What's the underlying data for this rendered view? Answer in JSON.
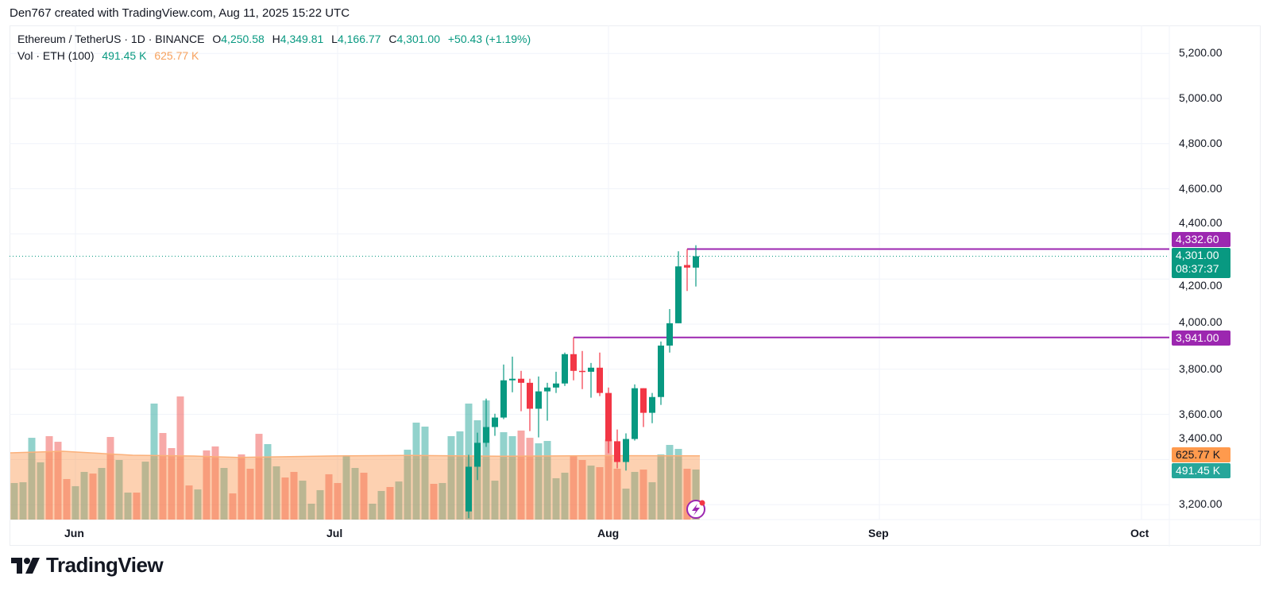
{
  "attribution": "Den767 created with TradingView.com, Aug 11, 2025 15:22 UTC",
  "legend": {
    "symbol": "Ethereum / TetherUS · 1D · BINANCE",
    "o_label": "O",
    "open": "4,250.58",
    "h_label": "H",
    "high": "4,349.81",
    "l_label": "L",
    "low": "4,166.77",
    "c_label": "C",
    "close": "4,301.00",
    "change": "+50.43 (+1.19%)",
    "vol_label": "Vol · ETH (100)",
    "vol_value": "491.45 K",
    "vol_ma_value": "625.77 K"
  },
  "price_labels": {
    "upper_level": "4,332.60",
    "last_price": "4,301.00",
    "countdown": "08:37:37",
    "lower_level": "3,941.00",
    "vol_ma": "625.77 K",
    "vol": "491.45 K"
  },
  "logo_text": "TradingView",
  "colors": {
    "up": "#089981",
    "down": "#f23645",
    "level": "#9c27b0",
    "vol_ma": "#ff9a4d",
    "vol_up": "#26a69a",
    "vol_down": "#ef5350"
  },
  "chart_data": {
    "type": "candlestick",
    "title": "Ethereum / TetherUS · 1D · BINANCE",
    "x_ticks": [
      {
        "label": "Jun",
        "date": "2025-06-01"
      },
      {
        "label": "Jul",
        "date": "2025-07-01"
      },
      {
        "label": "Aug",
        "date": "2025-08-01"
      },
      {
        "label": "Sep",
        "date": "2025-09-01"
      },
      {
        "label": "Oct",
        "date": "2025-10-01"
      }
    ],
    "y_ticks": [
      {
        "label": "5,200.00",
        "value": 5200
      },
      {
        "label": "5,000.00",
        "value": 5000
      },
      {
        "label": "4,800.00",
        "value": 4800
      },
      {
        "label": "4,600.00",
        "value": 4600
      },
      {
        "label": "4,400.00",
        "value": 4400
      },
      {
        "label": "4,200.00",
        "value": 4200
      },
      {
        "label": "4,000.00",
        "value": 4000
      },
      {
        "label": "3,800.00",
        "value": 3800
      },
      {
        "label": "3,600.00",
        "value": 3600
      },
      {
        "label": "3,400.00",
        "value": 3400
      },
      {
        "label": "3,200.00",
        "value": 3200
      }
    ],
    "grid": true,
    "horizontal_levels": [
      {
        "value": 4332.6,
        "from": "2025-08-10"
      },
      {
        "value": 3941.0,
        "from": "2025-07-28"
      }
    ],
    "last_price": 4301.0,
    "candles": [
      {
        "date": "2025-07-16",
        "o": 3170,
        "h": 3421,
        "l": 3140,
        "c": 3368
      },
      {
        "date": "2025-07-17",
        "o": 3368,
        "h": 3519,
        "l": 3309,
        "c": 3474
      },
      {
        "date": "2025-07-18",
        "o": 3474,
        "h": 3670,
        "l": 3456,
        "c": 3544
      },
      {
        "date": "2025-07-19",
        "o": 3544,
        "h": 3603,
        "l": 3505,
        "c": 3586
      },
      {
        "date": "2025-07-20",
        "o": 3586,
        "h": 3821,
        "l": 3579,
        "c": 3751
      },
      {
        "date": "2025-07-21",
        "o": 3751,
        "h": 3856,
        "l": 3698,
        "c": 3758
      },
      {
        "date": "2025-07-22",
        "o": 3758,
        "h": 3793,
        "l": 3614,
        "c": 3740
      },
      {
        "date": "2025-07-23",
        "o": 3740,
        "h": 3758,
        "l": 3526,
        "c": 3625
      },
      {
        "date": "2025-07-24",
        "o": 3625,
        "h": 3768,
        "l": 3498,
        "c": 3702
      },
      {
        "date": "2025-07-25",
        "o": 3702,
        "h": 3740,
        "l": 3572,
        "c": 3719
      },
      {
        "date": "2025-07-26",
        "o": 3719,
        "h": 3789,
        "l": 3695,
        "c": 3737
      },
      {
        "date": "2025-07-27",
        "o": 3737,
        "h": 3874,
        "l": 3726,
        "c": 3867
      },
      {
        "date": "2025-07-28",
        "o": 3867,
        "h": 3941,
        "l": 3751,
        "c": 3793
      },
      {
        "date": "2025-07-29",
        "o": 3793,
        "h": 3881,
        "l": 3712,
        "c": 3789
      },
      {
        "date": "2025-07-30",
        "o": 3789,
        "h": 3828,
        "l": 3674,
        "c": 3807
      },
      {
        "date": "2025-07-31",
        "o": 3807,
        "h": 3874,
        "l": 3681,
        "c": 3695
      },
      {
        "date": "2025-08-01",
        "o": 3695,
        "h": 3719,
        "l": 3428,
        "c": 3481
      },
      {
        "date": "2025-08-02",
        "o": 3481,
        "h": 3533,
        "l": 3361,
        "c": 3389
      },
      {
        "date": "2025-08-03",
        "o": 3389,
        "h": 3516,
        "l": 3351,
        "c": 3491
      },
      {
        "date": "2025-08-04",
        "o": 3491,
        "h": 3733,
        "l": 3484,
        "c": 3716
      },
      {
        "date": "2025-08-05",
        "o": 3716,
        "h": 3716,
        "l": 3544,
        "c": 3607
      },
      {
        "date": "2025-08-06",
        "o": 3607,
        "h": 3695,
        "l": 3561,
        "c": 3677
      },
      {
        "date": "2025-08-07",
        "o": 3677,
        "h": 3923,
        "l": 3642,
        "c": 3905
      },
      {
        "date": "2025-08-08",
        "o": 3905,
        "h": 4067,
        "l": 3874,
        "c": 4004
      },
      {
        "date": "2025-08-09",
        "o": 4004,
        "h": 4323,
        "l": 4004,
        "c": 4256
      },
      {
        "date": "2025-08-10",
        "o": 4262,
        "h": 4332.6,
        "l": 4147,
        "c": 4250.58
      },
      {
        "date": "2025-08-11",
        "o": 4250.58,
        "h": 4349.81,
        "l": 4166.77,
        "c": 4301.0
      }
    ],
    "volume_unit": "K",
    "volume": [
      {
        "date": "2025-05-25",
        "v": 359,
        "up": true
      },
      {
        "date": "2025-05-26",
        "v": 367,
        "up": true
      },
      {
        "date": "2025-05-27",
        "v": 803,
        "up": true
      },
      {
        "date": "2025-05-28",
        "v": 562,
        "up": true
      },
      {
        "date": "2025-05-29",
        "v": 819,
        "up": false
      },
      {
        "date": "2025-05-30",
        "v": 764,
        "up": false
      },
      {
        "date": "2025-05-31",
        "v": 398,
        "up": false
      },
      {
        "date": "2025-06-01",
        "v": 328,
        "up": true
      },
      {
        "date": "2025-06-02",
        "v": 468,
        "up": true
      },
      {
        "date": "2025-06-03",
        "v": 452,
        "up": false
      },
      {
        "date": "2025-06-04",
        "v": 507,
        "up": true
      },
      {
        "date": "2025-06-05",
        "v": 811,
        "up": false
      },
      {
        "date": "2025-06-06",
        "v": 585,
        "up": true
      },
      {
        "date": "2025-06-07",
        "v": 265,
        "up": true
      },
      {
        "date": "2025-06-08",
        "v": 265,
        "up": false
      },
      {
        "date": "2025-06-09",
        "v": 569,
        "up": true
      },
      {
        "date": "2025-06-10",
        "v": 1139,
        "up": true
      },
      {
        "date": "2025-06-11",
        "v": 850,
        "up": false
      },
      {
        "date": "2025-06-12",
        "v": 702,
        "up": false
      },
      {
        "date": "2025-06-13",
        "v": 1209,
        "up": false
      },
      {
        "date": "2025-06-14",
        "v": 335,
        "up": false
      },
      {
        "date": "2025-06-15",
        "v": 296,
        "up": true
      },
      {
        "date": "2025-06-16",
        "v": 679,
        "up": false
      },
      {
        "date": "2025-06-17",
        "v": 718,
        "up": false
      },
      {
        "date": "2025-06-18",
        "v": 507,
        "up": true
      },
      {
        "date": "2025-06-19",
        "v": 257,
        "up": false
      },
      {
        "date": "2025-06-20",
        "v": 640,
        "up": false
      },
      {
        "date": "2025-06-21",
        "v": 499,
        "up": false
      },
      {
        "date": "2025-06-22",
        "v": 842,
        "up": false
      },
      {
        "date": "2025-06-23",
        "v": 741,
        "up": true
      },
      {
        "date": "2025-06-24",
        "v": 523,
        "up": true
      },
      {
        "date": "2025-06-25",
        "v": 413,
        "up": false
      },
      {
        "date": "2025-06-26",
        "v": 468,
        "up": false
      },
      {
        "date": "2025-06-27",
        "v": 382,
        "up": true
      },
      {
        "date": "2025-06-28",
        "v": 156,
        "up": true
      },
      {
        "date": "2025-06-29",
        "v": 289,
        "up": true
      },
      {
        "date": "2025-06-30",
        "v": 445,
        "up": false
      },
      {
        "date": "2025-07-01",
        "v": 359,
        "up": false
      },
      {
        "date": "2025-07-02",
        "v": 632,
        "up": true
      },
      {
        "date": "2025-07-03",
        "v": 507,
        "up": true
      },
      {
        "date": "2025-07-04",
        "v": 460,
        "up": false
      },
      {
        "date": "2025-07-05",
        "v": 156,
        "up": true
      },
      {
        "date": "2025-07-06",
        "v": 281,
        "up": true
      },
      {
        "date": "2025-07-07",
        "v": 320,
        "up": false
      },
      {
        "date": "2025-07-08",
        "v": 374,
        "up": true
      },
      {
        "date": "2025-07-09",
        "v": 686,
        "up": true
      },
      {
        "date": "2025-07-10",
        "v": 952,
        "up": true
      },
      {
        "date": "2025-07-11",
        "v": 913,
        "up": true
      },
      {
        "date": "2025-07-12",
        "v": 351,
        "up": false
      },
      {
        "date": "2025-07-13",
        "v": 359,
        "up": true
      },
      {
        "date": "2025-07-14",
        "v": 819,
        "up": true
      },
      {
        "date": "2025-07-15",
        "v": 866,
        "up": true
      },
      {
        "date": "2025-07-16",
        "v": 1139,
        "up": true
      },
      {
        "date": "2025-07-17",
        "v": 975,
        "up": true
      },
      {
        "date": "2025-07-18",
        "v": 1170,
        "up": true
      },
      {
        "date": "2025-07-19",
        "v": 382,
        "up": true
      },
      {
        "date": "2025-07-20",
        "v": 858,
        "up": true
      },
      {
        "date": "2025-07-21",
        "v": 819,
        "up": true
      },
      {
        "date": "2025-07-22",
        "v": 874,
        "up": false
      },
      {
        "date": "2025-07-23",
        "v": 803,
        "up": false
      },
      {
        "date": "2025-07-24",
        "v": 749,
        "up": true
      },
      {
        "date": "2025-07-25",
        "v": 772,
        "up": true
      },
      {
        "date": "2025-07-26",
        "v": 406,
        "up": true
      },
      {
        "date": "2025-07-27",
        "v": 460,
        "up": true
      },
      {
        "date": "2025-07-28",
        "v": 624,
        "up": false
      },
      {
        "date": "2025-07-29",
        "v": 585,
        "up": false
      },
      {
        "date": "2025-07-30",
        "v": 530,
        "up": true
      },
      {
        "date": "2025-07-31",
        "v": 515,
        "up": false
      },
      {
        "date": "2025-08-01",
        "v": 788,
        "up": false
      },
      {
        "date": "2025-08-02",
        "v": 499,
        "up": false
      },
      {
        "date": "2025-08-03",
        "v": 304,
        "up": true
      },
      {
        "date": "2025-08-04",
        "v": 468,
        "up": true
      },
      {
        "date": "2025-08-05",
        "v": 491,
        "up": false
      },
      {
        "date": "2025-08-06",
        "v": 367,
        "up": true
      },
      {
        "date": "2025-08-07",
        "v": 640,
        "up": true
      },
      {
        "date": "2025-08-08",
        "v": 733,
        "up": true
      },
      {
        "date": "2025-08-09",
        "v": 694,
        "up": true
      },
      {
        "date": "2025-08-10",
        "v": 499,
        "up": false
      },
      {
        "date": "2025-08-11",
        "v": 491.45,
        "up": true
      }
    ],
    "volume_ma": [
      {
        "date": "2025-05-25",
        "v": 655
      },
      {
        "date": "2025-05-31",
        "v": 671
      },
      {
        "date": "2025-06-08",
        "v": 632
      },
      {
        "date": "2025-06-15",
        "v": 624
      },
      {
        "date": "2025-06-20",
        "v": 610
      },
      {
        "date": "2025-07-01",
        "v": 625
      },
      {
        "date": "2025-07-10",
        "v": 630
      },
      {
        "date": "2025-07-20",
        "v": 622
      },
      {
        "date": "2025-08-01",
        "v": 628
      },
      {
        "date": "2025-08-11",
        "v": 625.77
      }
    ]
  }
}
